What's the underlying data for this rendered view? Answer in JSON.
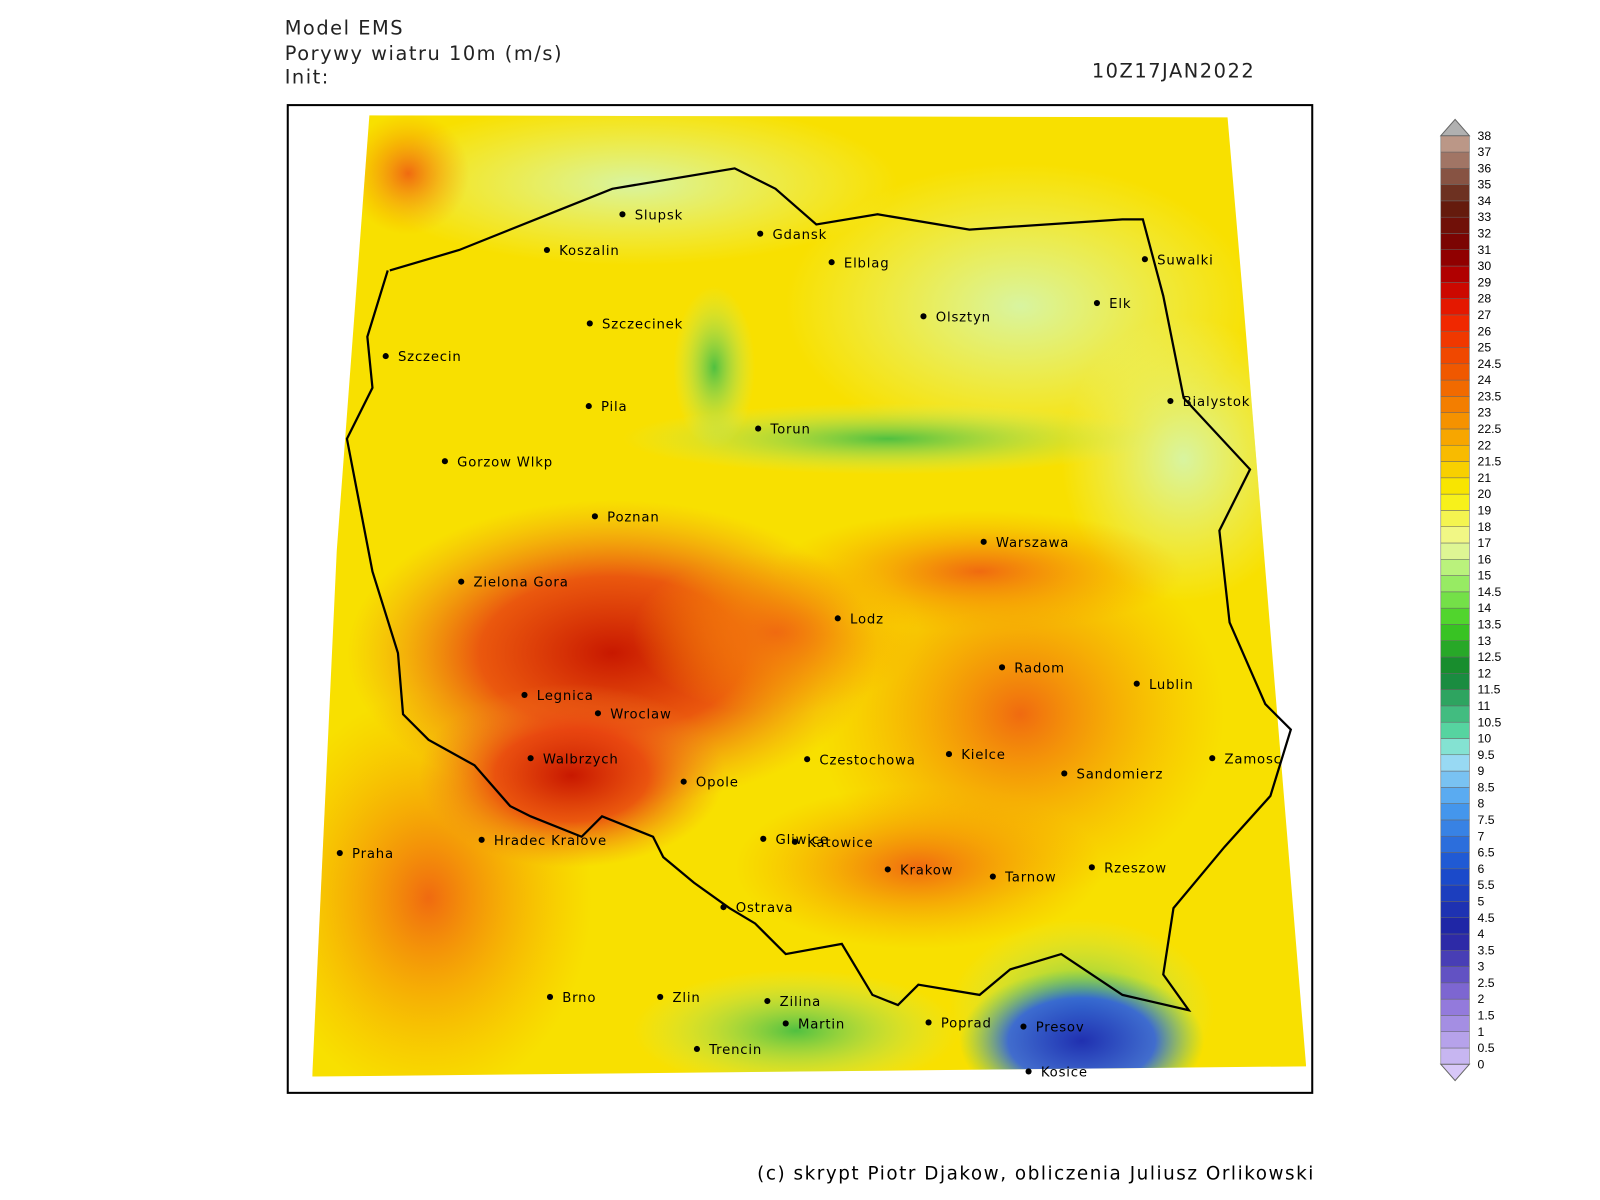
{
  "header": {
    "model": "Model EMS",
    "field": "Porywy wiatru 10m (m/s)",
    "init": "Init:",
    "time": "10Z17JAN2022"
  },
  "cities": [
    "Slupsk",
    "Koszalin",
    "Gdansk",
    "Elblag",
    "Suwalki",
    "Olsztyn",
    "Elk",
    "Szczecinek",
    "Szczecin",
    "Bialystok",
    "Pila",
    "Torun",
    "Gorzow Wlkp",
    "Poznan",
    "Warszawa",
    "Zielona Gora",
    "Lodz",
    "Radom",
    "Lublin",
    "Legnica",
    "Wroclaw",
    "Walbrzych",
    "Czestochowa",
    "Kielce",
    "Zamosc",
    "Sandomierz",
    "Opole",
    "Praha",
    "Hradec Kralove",
    "Gliwice",
    "Katowice",
    "Krakow",
    "Tarnow",
    "Rzeszow",
    "Ostrava",
    "Brno",
    "Zlin",
    "Zilina",
    "Martin",
    "Poprad",
    "Presov",
    "Trencin",
    "Kosice"
  ],
  "colorbar": {
    "labels": [
      0,
      0.5,
      1,
      1.5,
      2,
      2.5,
      3,
      3.5,
      4,
      4.5,
      5,
      5.5,
      6,
      6.5,
      7,
      7.5,
      8,
      8.5,
      9,
      9.5,
      10,
      10.5,
      11,
      11.5,
      12,
      12.5,
      13,
      13.5,
      14,
      14.5,
      15,
      16,
      17,
      18,
      19,
      20,
      21,
      21.5,
      22,
      22.5,
      23,
      23.5,
      24,
      24.5,
      25,
      26,
      27,
      28,
      29,
      30,
      31,
      32,
      33,
      34,
      35,
      36,
      37,
      38
    ]
  },
  "footer": "(c) skrypt Piotr Djakow, obliczenia Juliusz Orlikowski"
}
